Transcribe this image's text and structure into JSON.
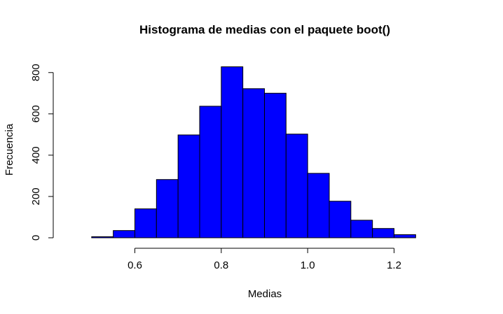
{
  "chart_data": {
    "type": "bar",
    "title": "Histograma de medias con el paquete boot()",
    "xlabel": "Medias",
    "ylabel": "Frecuencia",
    "bar_color": "#0000ff",
    "edge_color": "#000000",
    "bins": [
      {
        "start": 0.5,
        "end": 0.55,
        "value": 5
      },
      {
        "start": 0.55,
        "end": 0.6,
        "value": 35
      },
      {
        "start": 0.6,
        "end": 0.65,
        "value": 140
      },
      {
        "start": 0.65,
        "end": 0.7,
        "value": 282
      },
      {
        "start": 0.7,
        "end": 0.75,
        "value": 498
      },
      {
        "start": 0.75,
        "end": 0.8,
        "value": 637
      },
      {
        "start": 0.8,
        "end": 0.85,
        "value": 828
      },
      {
        "start": 0.85,
        "end": 0.9,
        "value": 722
      },
      {
        "start": 0.9,
        "end": 0.95,
        "value": 700
      },
      {
        "start": 0.95,
        "end": 1.0,
        "value": 502
      },
      {
        "start": 1.0,
        "end": 1.05,
        "value": 312
      },
      {
        "start": 1.05,
        "end": 1.1,
        "value": 177
      },
      {
        "start": 1.1,
        "end": 1.15,
        "value": 85
      },
      {
        "start": 1.15,
        "end": 1.2,
        "value": 45
      },
      {
        "start": 1.2,
        "end": 1.25,
        "value": 15
      }
    ],
    "xlim": [
      0.45,
      1.35
    ],
    "ylim": [
      0,
      850
    ],
    "x_ticks": [
      0.6,
      0.8,
      1.0,
      1.2
    ],
    "x_tick_labels": [
      "0.6",
      "0.8",
      "1.0",
      "1.2"
    ],
    "y_ticks": [
      0,
      200,
      400,
      600,
      800
    ],
    "y_tick_labels": [
      "0",
      "200",
      "400",
      "600",
      "800"
    ],
    "grid": false,
    "legend": "none"
  }
}
